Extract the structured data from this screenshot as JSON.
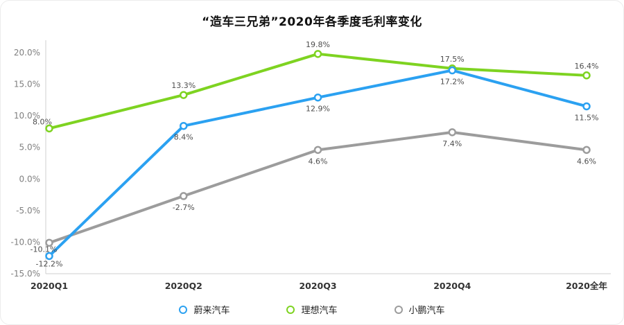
{
  "title": "“造车三兄弟”2020年各季度毛利率变化",
  "chart_data": {
    "type": "line",
    "categories": [
      "2020Q1",
      "2020Q2",
      "2020Q3",
      "2020Q4",
      "2020全年"
    ],
    "series": [
      {
        "name": "蔚来汽车",
        "color": "#2ba1f1",
        "values": [
          -12.2,
          8.4,
          12.9,
          17.2,
          11.5
        ],
        "label_position": "below",
        "label_nudges": {
          "0": [
            0,
            -5
          ]
        }
      },
      {
        "name": "理想汽车",
        "color": "#7ed321",
        "values": [
          8.0,
          13.3,
          19.8,
          17.5,
          16.4
        ],
        "label_position": "above",
        "label_nudges": {
          "0": [
            -10,
            4
          ]
        }
      },
      {
        "name": "小鹏汽车",
        "color": "#9c9c9c",
        "values": [
          -10.1,
          -2.7,
          4.6,
          7.4,
          4.6
        ],
        "label_position": "below",
        "label_nudges": {
          "0": [
            -8,
            -7
          ]
        }
      }
    ],
    "ylim": [
      -15,
      20
    ],
    "ytick_step": 5,
    "ytick_labels": [
      "20.0%",
      "15.0%",
      "10.0%",
      "5.0%",
      "0.0%",
      "-5.0%",
      "-10.0%",
      "-15.0%"
    ],
    "grid": false,
    "legend_position": "bottom",
    "marker": "open-circle",
    "axis_color": "#cfcfcf",
    "label_color": "#4d4d4d",
    "ytick_color": "#7f7f7f",
    "xtick_color": "#333333"
  }
}
